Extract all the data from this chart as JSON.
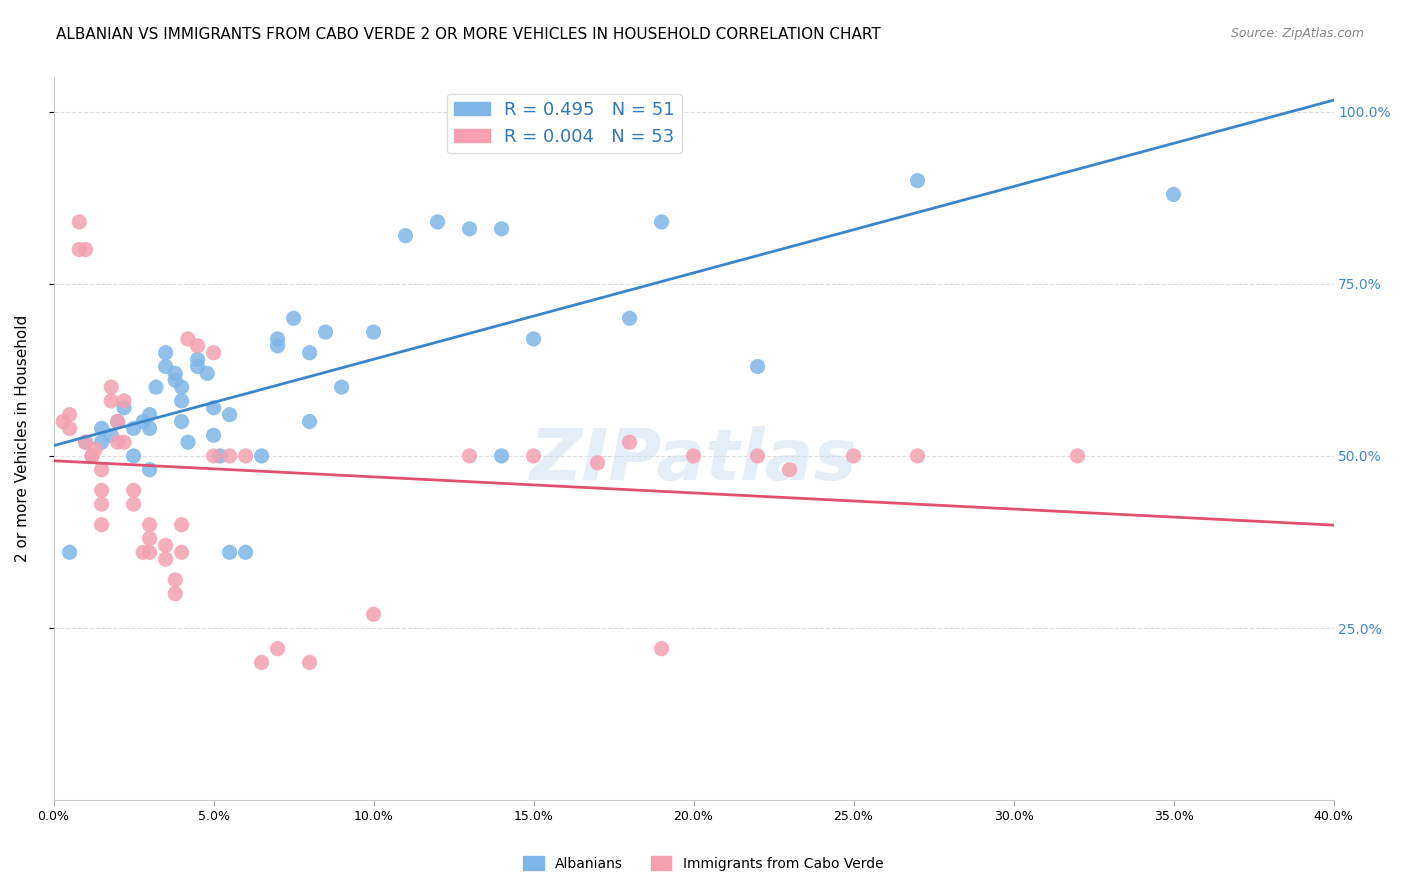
{
  "title": "ALBANIAN VS IMMIGRANTS FROM CABO VERDE 2 OR MORE VEHICLES IN HOUSEHOLD CORRELATION CHART",
  "source": "Source: ZipAtlas.com",
  "ylabel": "2 or more Vehicles in Household",
  "xlim": [
    0.0,
    0.4
  ],
  "ylim": [
    0.0,
    1.05
  ],
  "legend_blue_label": "R = 0.495   N = 51",
  "legend_pink_label": "R = 0.004   N = 53",
  "watermark": "ZIPatlas",
  "blue_color": "#7EB6E8",
  "pink_color": "#F4A0B0",
  "blue_line_color": "#3A86C8",
  "pink_line_color": "#E05070",
  "grid_color": "#DDDDDD",
  "background_color": "#FFFFFF",
  "blue_scatter_x": [
    0.005,
    0.01,
    0.015,
    0.015,
    0.018,
    0.02,
    0.022,
    0.025,
    0.025,
    0.028,
    0.03,
    0.03,
    0.03,
    0.032,
    0.035,
    0.035,
    0.038,
    0.038,
    0.04,
    0.04,
    0.04,
    0.042,
    0.045,
    0.045,
    0.048,
    0.05,
    0.05,
    0.052,
    0.055,
    0.055,
    0.06,
    0.065,
    0.07,
    0.07,
    0.075,
    0.08,
    0.08,
    0.085,
    0.09,
    0.1,
    0.11,
    0.12,
    0.13,
    0.14,
    0.14,
    0.15,
    0.18,
    0.19,
    0.22,
    0.27,
    0.35
  ],
  "blue_scatter_y": [
    0.36,
    0.52,
    0.52,
    0.54,
    0.53,
    0.55,
    0.57,
    0.54,
    0.5,
    0.55,
    0.56,
    0.54,
    0.48,
    0.6,
    0.63,
    0.65,
    0.62,
    0.61,
    0.6,
    0.58,
    0.55,
    0.52,
    0.64,
    0.63,
    0.62,
    0.57,
    0.53,
    0.5,
    0.56,
    0.36,
    0.36,
    0.5,
    0.66,
    0.67,
    0.7,
    0.65,
    0.55,
    0.68,
    0.6,
    0.68,
    0.82,
    0.84,
    0.83,
    0.83,
    0.5,
    0.67,
    0.7,
    0.84,
    0.63,
    0.9,
    0.88
  ],
  "pink_scatter_x": [
    0.003,
    0.005,
    0.005,
    0.008,
    0.008,
    0.01,
    0.01,
    0.012,
    0.012,
    0.013,
    0.015,
    0.015,
    0.015,
    0.015,
    0.018,
    0.018,
    0.02,
    0.02,
    0.022,
    0.022,
    0.025,
    0.025,
    0.028,
    0.03,
    0.03,
    0.03,
    0.035,
    0.035,
    0.038,
    0.038,
    0.04,
    0.04,
    0.042,
    0.045,
    0.05,
    0.05,
    0.055,
    0.06,
    0.065,
    0.07,
    0.08,
    0.1,
    0.13,
    0.15,
    0.17,
    0.18,
    0.19,
    0.2,
    0.22,
    0.23,
    0.25,
    0.27,
    0.32
  ],
  "pink_scatter_y": [
    0.55,
    0.56,
    0.54,
    0.84,
    0.8,
    0.8,
    0.52,
    0.5,
    0.5,
    0.51,
    0.48,
    0.45,
    0.43,
    0.4,
    0.6,
    0.58,
    0.55,
    0.52,
    0.58,
    0.52,
    0.45,
    0.43,
    0.36,
    0.4,
    0.38,
    0.36,
    0.37,
    0.35,
    0.32,
    0.3,
    0.4,
    0.36,
    0.67,
    0.66,
    0.65,
    0.5,
    0.5,
    0.5,
    0.2,
    0.22,
    0.2,
    0.27,
    0.5,
    0.5,
    0.49,
    0.52,
    0.22,
    0.5,
    0.5,
    0.48,
    0.5,
    0.5,
    0.5
  ],
  "ytick_positions": [
    0.25,
    0.5,
    0.75,
    1.0
  ],
  "ytick_labels_right": [
    "25.0%",
    "50.0%",
    "75.0%",
    "100.0%"
  ],
  "xtick_count": 9
}
